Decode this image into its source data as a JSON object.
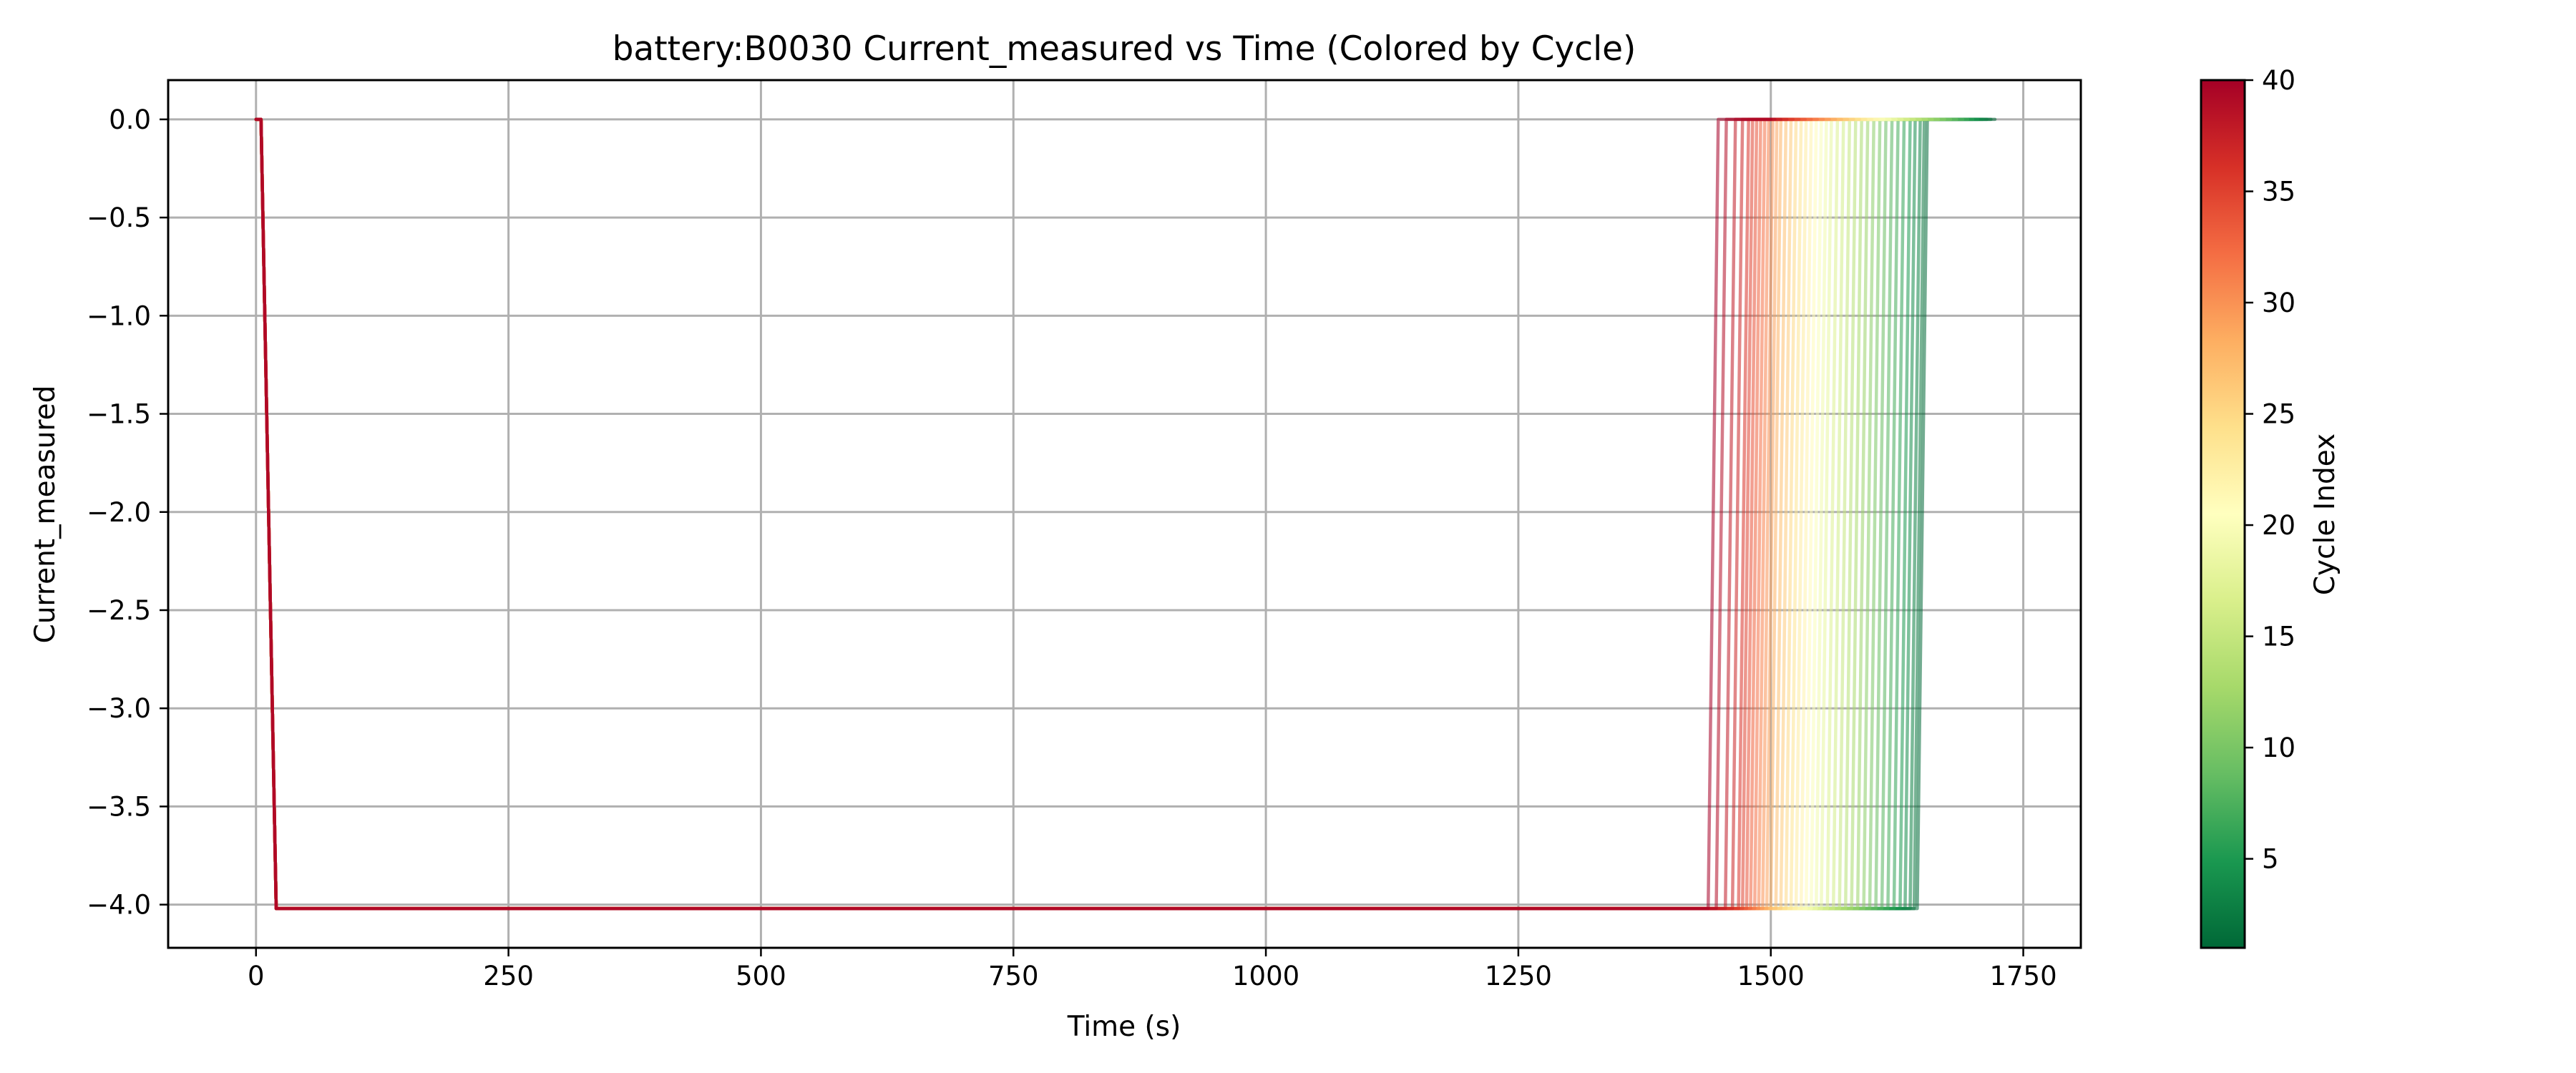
{
  "chart_data": {
    "type": "line",
    "title": "battery:B0030 Current_measured vs Time (Colored by Cycle)",
    "xlabel": "Time (s)",
    "ylabel": "Current_measured",
    "xlim": [
      -87,
      1807
    ],
    "ylim": [
      -4.22,
      0.2
    ],
    "xticks": [
      0,
      250,
      500,
      750,
      1000,
      1250,
      1500,
      1750
    ],
    "xtick_labels": [
      "0",
      "250",
      "500",
      "750",
      "1000",
      "1250",
      "1500",
      "1750"
    ],
    "yticks": [
      0.0,
      -0.5,
      -1.0,
      -1.5,
      -2.0,
      -2.5,
      -3.0,
      -3.5,
      -4.0
    ],
    "ytick_labels": [
      "0.0",
      "−0.5",
      "−1.0",
      "−1.5",
      "−2.0",
      "−2.5",
      "−3.0",
      "−3.5",
      "−4.0"
    ],
    "grid": true,
    "colormap": "RdYlGn_r",
    "colorbar": {
      "label": "Cycle Index",
      "range": [
        1,
        40
      ],
      "ticks": [
        5,
        10,
        15,
        20,
        25,
        30,
        35,
        40
      ],
      "tick_labels": [
        "5",
        "10",
        "15",
        "20",
        "25",
        "30",
        "35",
        "40"
      ],
      "colors": [
        "#006837",
        "#1a9850",
        "#66bd63",
        "#a6d96a",
        "#d9ef8b",
        "#ffffbf",
        "#fee08b",
        "#fdae61",
        "#f46d43",
        "#d73027",
        "#a50026"
      ]
    },
    "series_profile": {
      "rest_current": 0.0,
      "discharge_current": -4.02,
      "start_time": 0,
      "initial_rest_end": 5,
      "drop_end": 20
    },
    "series": [
      {
        "cycle": 1,
        "discharge_end": 1645,
        "end_time": 1722
      },
      {
        "cycle": 2,
        "discharge_end": 1642,
        "end_time": 1718
      },
      {
        "cycle": 3,
        "discharge_end": 1638,
        "end_time": 1714
      },
      {
        "cycle": 4,
        "discharge_end": 1633,
        "end_time": 1710
      },
      {
        "cycle": 5,
        "discharge_end": 1628,
        "end_time": 1705
      },
      {
        "cycle": 6,
        "discharge_end": 1622,
        "end_time": 1700
      },
      {
        "cycle": 7,
        "discharge_end": 1616,
        "end_time": 1695
      },
      {
        "cycle": 8,
        "discharge_end": 1610,
        "end_time": 1690
      },
      {
        "cycle": 9,
        "discharge_end": 1604,
        "end_time": 1684
      },
      {
        "cycle": 10,
        "discharge_end": 1598,
        "end_time": 1678
      },
      {
        "cycle": 11,
        "discharge_end": 1592,
        "end_time": 1672
      },
      {
        "cycle": 12,
        "discharge_end": 1586,
        "end_time": 1666
      },
      {
        "cycle": 13,
        "discharge_end": 1580,
        "end_time": 1660
      },
      {
        "cycle": 14,
        "discharge_end": 1574,
        "end_time": 1654
      },
      {
        "cycle": 15,
        "discharge_end": 1568,
        "end_time": 1648
      },
      {
        "cycle": 16,
        "discharge_end": 1562,
        "end_time": 1642
      },
      {
        "cycle": 17,
        "discharge_end": 1556,
        "end_time": 1636
      },
      {
        "cycle": 18,
        "discharge_end": 1550,
        "end_time": 1630
      },
      {
        "cycle": 19,
        "discharge_end": 1545,
        "end_time": 1624
      },
      {
        "cycle": 20,
        "discharge_end": 1540,
        "end_time": 1618
      },
      {
        "cycle": 21,
        "discharge_end": 1535,
        "end_time": 1612
      },
      {
        "cycle": 22,
        "discharge_end": 1530,
        "end_time": 1606
      },
      {
        "cycle": 23,
        "discharge_end": 1525,
        "end_time": 1600
      },
      {
        "cycle": 24,
        "discharge_end": 1520,
        "end_time": 1594
      },
      {
        "cycle": 25,
        "discharge_end": 1515,
        "end_time": 1588
      },
      {
        "cycle": 26,
        "discharge_end": 1510,
        "end_time": 1582
      },
      {
        "cycle": 27,
        "discharge_end": 1505,
        "end_time": 1576
      },
      {
        "cycle": 28,
        "discharge_end": 1500,
        "end_time": 1570
      },
      {
        "cycle": 29,
        "discharge_end": 1496,
        "end_time": 1564
      },
      {
        "cycle": 30,
        "discharge_end": 1492,
        "end_time": 1558
      },
      {
        "cycle": 31,
        "discharge_end": 1488,
        "end_time": 1552
      },
      {
        "cycle": 32,
        "discharge_end": 1484,
        "end_time": 1546
      },
      {
        "cycle": 33,
        "discharge_end": 1480,
        "end_time": 1540
      },
      {
        "cycle": 34,
        "discharge_end": 1476,
        "end_time": 1534
      },
      {
        "cycle": 35,
        "discharge_end": 1472,
        "end_time": 1528
      },
      {
        "cycle": 36,
        "discharge_end": 1468,
        "end_time": 1522
      },
      {
        "cycle": 37,
        "discharge_end": 1462,
        "end_time": 1516
      },
      {
        "cycle": 38,
        "discharge_end": 1455,
        "end_time": 1510
      },
      {
        "cycle": 39,
        "discharge_end": 1446,
        "end_time": 1504
      },
      {
        "cycle": 40,
        "discharge_end": 1438,
        "end_time": 1500
      }
    ]
  }
}
